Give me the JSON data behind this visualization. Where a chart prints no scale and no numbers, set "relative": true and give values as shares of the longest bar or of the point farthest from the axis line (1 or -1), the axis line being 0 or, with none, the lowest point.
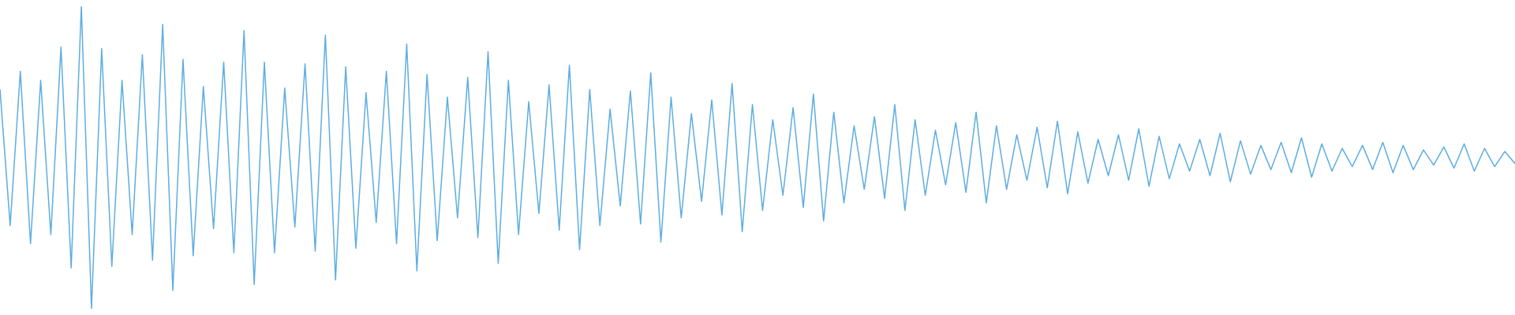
{
  "chart_data": {
    "type": "line",
    "relative": true,
    "tick_labels": false,
    "legend": false,
    "marker": "none",
    "line_style": "solid",
    "categories": [
      null,
      null,
      null,
      null,
      null,
      null,
      null,
      null,
      null,
      null,
      null,
      null,
      null,
      null,
      null,
      null,
      null,
      null,
      null,
      null,
      null,
      null,
      null,
      null,
      null,
      null,
      null,
      null,
      null,
      null,
      null,
      null,
      null,
      null,
      null,
      null,
      null,
      null,
      null,
      null,
      null,
      null,
      null,
      null,
      null,
      null,
      null,
      null,
      null,
      null,
      null,
      null,
      null,
      null,
      null,
      null,
      null,
      null,
      null,
      null,
      null,
      null,
      null,
      null,
      null,
      null,
      null,
      null,
      null,
      null,
      null,
      null,
      null,
      null,
      null,
      null,
      null,
      null,
      null,
      null,
      null,
      null,
      null,
      null,
      null,
      null,
      null,
      null,
      null,
      null,
      null,
      null,
      null,
      null,
      null,
      null,
      null,
      null,
      null,
      null,
      null,
      null,
      null,
      null,
      null,
      null,
      null,
      null,
      null,
      null,
      null,
      null,
      null,
      null,
      null,
      null,
      null,
      null,
      null,
      null,
      null,
      null,
      null,
      null,
      null,
      null,
      null,
      null,
      null,
      null,
      null,
      null,
      null,
      null,
      null,
      null,
      null,
      null,
      null,
      null,
      null,
      null,
      null,
      null,
      null,
      null,
      null,
      null,
      null,
      null
    ],
    "series": [
      {
        "color": "#5dade2",
        "values": [
          0.725,
          0.275,
          0.785,
          0.215,
          0.755,
          0.245,
          0.865,
          0.135,
          1,
          0,
          0.86,
          0.14,
          0.755,
          0.245,
          0.84,
          0.16,
          0.94,
          0.06,
          0.825,
          0.175,
          0.735,
          0.265,
          0.815,
          0.185,
          0.92,
          0.08,
          0.815,
          0.185,
          0.73,
          0.27,
          0.81,
          0.19,
          0.905,
          0.095,
          0.8,
          0.2,
          0.715,
          0.285,
          0.785,
          0.215,
          0.875,
          0.125,
          0.775,
          0.225,
          0.7,
          0.3,
          0.765,
          0.235,
          0.85,
          0.15,
          0.755,
          0.245,
          0.685,
          0.315,
          0.74,
          0.26,
          0.805,
          0.195,
          0.725,
          0.275,
          0.66,
          0.34,
          0.72,
          0.28,
          0.78,
          0.22,
          0.7,
          0.3,
          0.645,
          0.355,
          0.69,
          0.31,
          0.745,
          0.255,
          0.675,
          0.325,
          0.625,
          0.375,
          0.665,
          0.335,
          0.71,
          0.29,
          0.65,
          0.35,
          0.605,
          0.395,
          0.635,
          0.365,
          0.675,
          0.325,
          0.625,
          0.375,
          0.59,
          0.41,
          0.615,
          0.385,
          0.65,
          0.35,
          0.605,
          0.395,
          0.575,
          0.425,
          0.6,
          0.4,
          0.62,
          0.38,
          0.585,
          0.415,
          0.56,
          0.44,
          0.575,
          0.425,
          0.595,
          0.405,
          0.57,
          0.43,
          0.545,
          0.455,
          0.56,
          0.44,
          0.58,
          0.42,
          0.555,
          0.445,
          0.54,
          0.46,
          0.55,
          0.45,
          0.565,
          0.435,
          0.545,
          0.455,
          0.53,
          0.47,
          0.54,
          0.46,
          0.55,
          0.45,
          0.54,
          0.46,
          0.525,
          0.475,
          0.535,
          0.465,
          0.545,
          0.455,
          0.53,
          0.47,
          0.52,
          0.48
        ]
      }
    ]
  }
}
